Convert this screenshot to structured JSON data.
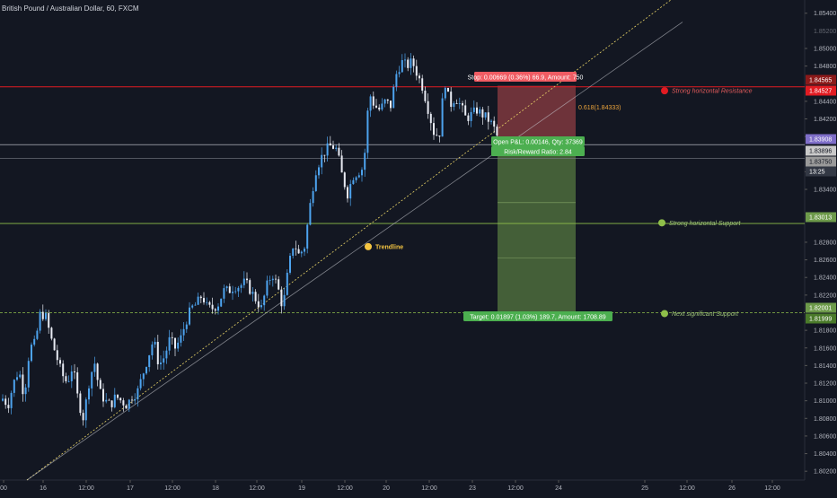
{
  "header": {
    "symbol_title": "British Pound / Australian Dollar, 60, FXCM"
  },
  "colors": {
    "background": "#131722",
    "bullish_candle": "#4da3ee",
    "bearish_candle": "#e9ecf4",
    "resistance": "#e11b22",
    "support": "#8fbf4a",
    "trendline": "#e8d366",
    "stop_zone": "#b94a4f",
    "target_zone": "#6d9a4a",
    "label_red": "#f05c63",
    "label_green": "#4caf50"
  },
  "chart_data": {
    "type": "candlestick",
    "symbol": "British Pound / Australian Dollar",
    "timeframe": "60",
    "broker": "FXCM",
    "x_axis": {
      "tick_labels": [
        "00",
        "16",
        "12:00",
        "17",
        "12:00",
        "18",
        "12:00",
        "19",
        "12:00",
        "20",
        "12:00",
        "23",
        "12:00",
        "24",
        "25",
        "12:00",
        "26",
        "12:00"
      ]
    },
    "y_axis": {
      "range": [
        1.801,
        1.8555
      ],
      "tick_labels": [
        "1.85400",
        "1.85000",
        "1.84800",
        "1.84400",
        "1.84200",
        "1.84000",
        "1.83600",
        "1.83400",
        "1.82800",
        "1.82600",
        "1.82400",
        "1.82200",
        "1.81800",
        "1.81600",
        "1.81400",
        "1.81200",
        "1.81000",
        "1.80800",
        "1.80600",
        "1.80400",
        "1.80200"
      ],
      "partial_tick_label": "1.85200"
    },
    "price_tags": [
      {
        "text": "1.84565",
        "value": 1.84565,
        "style": "resistance-dark"
      },
      {
        "text": "1.84527",
        "value": 1.84527,
        "style": "resistance"
      },
      {
        "text": "1.83908",
        "value": 1.83908,
        "style": "entry"
      },
      {
        "text": "1.83896",
        "value": 1.83896,
        "style": "current"
      },
      {
        "text": "1.83750",
        "value": 1.8375,
        "style": "grey"
      },
      {
        "text": "13:25",
        "value": 1.8358,
        "style": "countdown"
      },
      {
        "text": "1.83013",
        "value": 1.83013,
        "style": "support"
      },
      {
        "text": "1.82001",
        "value": 1.82001,
        "style": "support"
      },
      {
        "text": "1.81999",
        "value": 1.81999,
        "style": "support-dark"
      }
    ],
    "candles": {
      "start_price": 1.81,
      "ohlc_note": "approximate hourly path read from chart",
      "path": [
        [
          0,
          1.8105
        ],
        [
          8,
          1.8095
        ],
        [
          14,
          1.812
        ],
        [
          20,
          1.8135
        ],
        [
          26,
          1.8105
        ],
        [
          32,
          1.816
        ],
        [
          38,
          1.8165
        ],
        [
          44,
          1.82
        ],
        [
          50,
          1.8195
        ],
        [
          56,
          1.817
        ],
        [
          62,
          1.815
        ],
        [
          68,
          1.813
        ],
        [
          74,
          1.812
        ],
        [
          80,
          1.814
        ],
        [
          86,
          1.81
        ],
        [
          92,
          1.808
        ],
        [
          98,
          1.812
        ],
        [
          104,
          1.8145
        ],
        [
          110,
          1.811
        ],
        [
          116,
          1.81
        ],
        [
          122,
          1.8095
        ],
        [
          128,
          1.8105
        ],
        [
          134,
          1.81
        ],
        [
          140,
          1.8095
        ],
        [
          146,
          1.8105
        ],
        [
          152,
          1.811
        ],
        [
          158,
          1.813
        ],
        [
          164,
          1.815
        ],
        [
          170,
          1.817
        ],
        [
          176,
          1.814
        ],
        [
          182,
          1.815
        ],
        [
          188,
          1.817
        ],
        [
          194,
          1.816
        ],
        [
          200,
          1.817
        ],
        [
          206,
          1.819
        ],
        [
          212,
          1.8205
        ],
        [
          218,
          1.821
        ],
        [
          224,
          1.822
        ],
        [
          230,
          1.8205
        ],
        [
          236,
          1.8205
        ],
        [
          242,
          1.821
        ],
        [
          248,
          1.8225
        ],
        [
          254,
          1.8225
        ],
        [
          260,
          1.823
        ],
        [
          266,
          1.823
        ],
        [
          272,
          1.8235
        ],
        [
          278,
          1.8225
        ],
        [
          284,
          1.8215
        ],
        [
          290,
          1.8205
        ],
        [
          296,
          1.823
        ],
        [
          302,
          1.8245
        ],
        [
          308,
          1.823
        ],
        [
          314,
          1.8205
        ],
        [
          320,
          1.825
        ],
        [
          326,
          1.828
        ],
        [
          332,
          1.8265
        ],
        [
          338,
          1.8275
        ],
        [
          344,
          1.832
        ],
        [
          350,
          1.836
        ],
        [
          356,
          1.8375
        ],
        [
          362,
          1.8385
        ],
        [
          368,
          1.839
        ],
        [
          374,
          1.8385
        ],
        [
          380,
          1.8355
        ],
        [
          386,
          1.8335
        ],
        [
          392,
          1.8355
        ],
        [
          398,
          1.836
        ],
        [
          404,
          1.8365
        ],
        [
          410,
          1.845
        ],
        [
          416,
          1.8435
        ],
        [
          422,
          1.843
        ],
        [
          428,
          1.844
        ],
        [
          434,
          1.8435
        ],
        [
          440,
          1.847
        ],
        [
          446,
          1.8485
        ],
        [
          452,
          1.848
        ],
        [
          458,
          1.8485
        ],
        [
          464,
          1.847
        ],
        [
          470,
          1.8455
        ],
        [
          476,
          1.843
        ],
        [
          482,
          1.8405
        ],
        [
          488,
          1.84
        ],
        [
          494,
          1.8465
        ],
        [
          500,
          1.8435
        ],
        [
          506,
          1.8445
        ],
        [
          512,
          1.8435
        ],
        [
          518,
          1.842
        ],
        [
          524,
          1.8425
        ],
        [
          530,
          1.843
        ],
        [
          536,
          1.8425
        ],
        [
          542,
          1.842
        ],
        [
          548,
          1.8412
        ],
        [
          554,
          1.8396
        ]
      ]
    },
    "horizontal_lines": [
      {
        "name": "resistance",
        "value": 1.84565,
        "style": "solid-red"
      },
      {
        "name": "entry",
        "value": 1.83908,
        "style": "solid-white"
      },
      {
        "name": "lower-entry",
        "value": 1.8375,
        "style": "solid-grey"
      },
      {
        "name": "support",
        "value": 1.83013,
        "style": "solid-green"
      },
      {
        "name": "next-support",
        "value": 1.82001,
        "style": "dashed-green"
      }
    ],
    "trendlines": [
      {
        "name": "trendline",
        "from": [
          30,
          1.801
        ],
        "to": [
          760,
          1.8565
        ]
      },
      {
        "name": "trendline-parallel",
        "from": [
          30,
          1.801
        ],
        "to": [
          760,
          1.853
        ]
      }
    ],
    "fib_marker": {
      "text": "0.618(1.84333)",
      "value": 1.84333
    },
    "position": {
      "type": "short",
      "entry": 1.83908,
      "stop": 1.84577,
      "target": 1.82011,
      "stop_label": "Stop: 0.00669 (0.36%) 66.9, Amount: 750",
      "target_label": "Target: 0.01897 (1.03%) 189.7, Amount: 1708.89",
      "pnl_label": "Open P&L: 0.00146, Qty: 37369",
      "rr_label": "Risk/Reward Ratio: 2.84"
    },
    "annotations": [
      {
        "text": "Strong horizontal Resistance",
        "value": 1.8452,
        "color": "red"
      },
      {
        "text": "Strong horizontal Support",
        "value": 1.8302,
        "color": "green"
      },
      {
        "text": "Next significant Support",
        "value": 1.8199,
        "color": "green"
      },
      {
        "text": "Trendline",
        "value": 1.8275,
        "color": "yellow"
      }
    ]
  }
}
